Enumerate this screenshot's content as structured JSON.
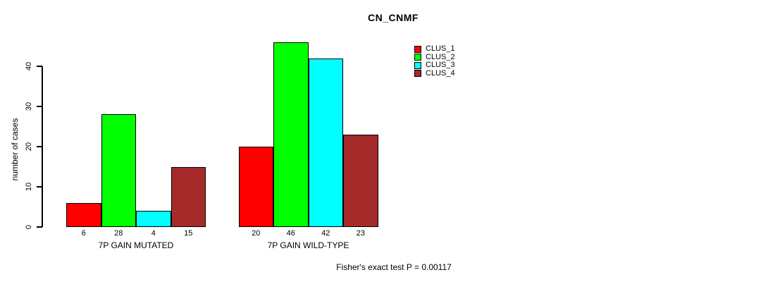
{
  "title": "CN_CNMF",
  "ylabel": "number of cases",
  "footnote": "Fisher's exact test P = 0.00117",
  "legend": {
    "items": [
      {
        "label": "CLUS_1",
        "color": "#FF0000"
      },
      {
        "label": "CLUS_2",
        "color": "#00FF00"
      },
      {
        "label": "CLUS_3",
        "color": "#00FFFF"
      },
      {
        "label": "CLUS_4",
        "color": "#A52A2A"
      }
    ]
  },
  "chart_data": {
    "type": "bar",
    "title": "CN_CNMF",
    "ylabel": "number of cases",
    "xlabel": "",
    "categories": [
      "7P GAIN MUTATED",
      "7P GAIN WILD-TYPE"
    ],
    "series": [
      {
        "name": "CLUS_1",
        "color": "#FF0000",
        "values": [
          6,
          20
        ]
      },
      {
        "name": "CLUS_2",
        "color": "#00FF00",
        "values": [
          28,
          46
        ]
      },
      {
        "name": "CLUS_3",
        "color": "#00FFFF",
        "values": [
          4,
          42
        ]
      },
      {
        "name": "CLUS_4",
        "color": "#A52A2A",
        "values": [
          15,
          23
        ]
      }
    ],
    "bar_value_labels": [
      [
        6,
        28,
        4,
        15
      ],
      [
        20,
        46,
        42,
        23
      ]
    ],
    "yticks": [
      0,
      10,
      20,
      30,
      40
    ],
    "ylim": [
      0,
      46
    ],
    "grid": false,
    "legend_position": "top-right",
    "annotation": "Fisher's exact test P = 0.00117"
  }
}
